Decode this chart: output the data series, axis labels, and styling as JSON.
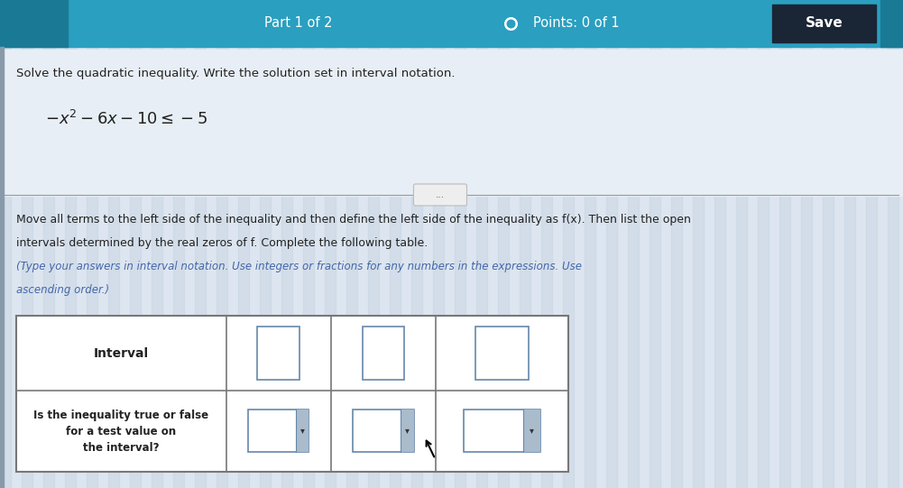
{
  "header_bg": "#2a9fc0",
  "header_dark_left": "#1a7a95",
  "header_text_color": "#ffffff",
  "header_part": "Part 1 of 2",
  "header_points": "Points: 0 of 1",
  "header_save": "Save",
  "save_bg": "#1a2535",
  "body_bg": "#ccd9e8",
  "content_bg": "#dde6f0",
  "stripe_bg": "#c8d5e4",
  "title_line": "Solve the quadratic inequality. Write the solution set in interval notation.",
  "equation": "$-x^2-6x-10\\leq -5$",
  "instruction_line1": "Move all terms to the left side of the inequality and then define the left side of the inequality as f(x). Then list the open",
  "instruction_line2": "intervals determined by the real zeros of f. Complete the following table.",
  "instruction_line3": "(Type your answers in interval notation. Use integers or fractions for any numbers in the expressions. Use",
  "instruction_line4": "ascending order.)",
  "table_row1": "Interval",
  "table_row2_line1": "Is the inequality true or false",
  "table_row2_line2": "for a test value on",
  "table_row2_line3": "the interval?",
  "table_border_color": "#777777",
  "dropdown_arrow": "▾",
  "separator_line_color": "#999999",
  "dots_label": "...",
  "instr_color": "#4466aa",
  "body_text_color": "#222222"
}
